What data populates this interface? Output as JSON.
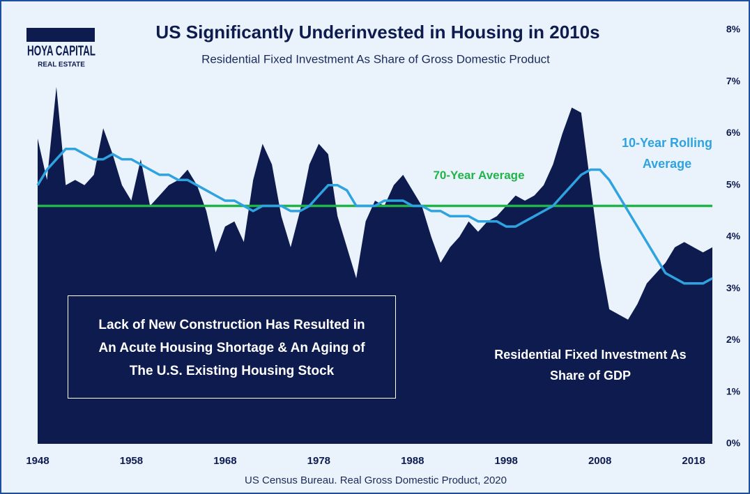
{
  "chart_data": {
    "type": "area",
    "title": "US Significantly Underinvested in Housing in 2010s",
    "subtitle": "Residential Fixed Investment As Share of Gross Domestic Product",
    "logo": {
      "name": "HOYA CAPITAL",
      "tagline": "REAL ESTATE"
    },
    "source": "US Census Bureau. Real Gross Domestic Product, 2020",
    "annotation": "Lack of New Construction Has Resulted in An Acute Housing Shortage & An Aging of The U.S. Existing Housing Stock",
    "x": [
      1948,
      1949,
      1950,
      1951,
      1952,
      1953,
      1954,
      1955,
      1956,
      1957,
      1958,
      1959,
      1960,
      1961,
      1962,
      1963,
      1964,
      1965,
      1966,
      1967,
      1968,
      1969,
      1970,
      1971,
      1972,
      1973,
      1974,
      1975,
      1976,
      1977,
      1978,
      1979,
      1980,
      1981,
      1982,
      1983,
      1984,
      1985,
      1986,
      1987,
      1988,
      1989,
      1990,
      1991,
      1992,
      1993,
      1994,
      1995,
      1996,
      1997,
      1998,
      1999,
      2000,
      2001,
      2002,
      2003,
      2004,
      2005,
      2006,
      2007,
      2008,
      2009,
      2010,
      2011,
      2012,
      2013,
      2014,
      2015,
      2016,
      2017,
      2018,
      2019,
      2020
    ],
    "series": [
      {
        "name": "Residential Fixed Investment As Share of GDP",
        "color": "#0d1b4f",
        "values": [
          5.9,
          5.1,
          6.9,
          5.0,
          5.1,
          5.0,
          5.2,
          6.1,
          5.6,
          5.0,
          4.7,
          5.5,
          4.6,
          4.8,
          5.0,
          5.1,
          5.3,
          5.0,
          4.5,
          3.7,
          4.2,
          4.3,
          3.9,
          5.1,
          5.8,
          5.4,
          4.4,
          3.8,
          4.5,
          5.4,
          5.8,
          5.6,
          4.4,
          3.8,
          3.2,
          4.3,
          4.7,
          4.6,
          5.0,
          5.2,
          4.9,
          4.6,
          4.0,
          3.5,
          3.8,
          4.0,
          4.3,
          4.1,
          4.3,
          4.4,
          4.6,
          4.8,
          4.7,
          4.8,
          5.0,
          5.4,
          6.0,
          6.5,
          6.4,
          5.0,
          3.6,
          2.6,
          2.5,
          2.4,
          2.7,
          3.1,
          3.3,
          3.5,
          3.8,
          3.9,
          3.8,
          3.7,
          3.8
        ]
      },
      {
        "name": "10-Year Rolling Average",
        "color": "#2ea3e0",
        "render": "line",
        "values": [
          5.0,
          5.3,
          5.5,
          5.7,
          5.7,
          5.6,
          5.5,
          5.5,
          5.6,
          5.5,
          5.5,
          5.4,
          5.3,
          5.2,
          5.2,
          5.1,
          5.1,
          5.0,
          4.9,
          4.8,
          4.7,
          4.7,
          4.6,
          4.5,
          4.6,
          4.6,
          4.6,
          4.5,
          4.5,
          4.6,
          4.8,
          5.0,
          5.0,
          4.9,
          4.6,
          4.6,
          4.6,
          4.7,
          4.7,
          4.7,
          4.6,
          4.6,
          4.5,
          4.5,
          4.4,
          4.4,
          4.4,
          4.3,
          4.3,
          4.3,
          4.2,
          4.2,
          4.3,
          4.4,
          4.5,
          4.6,
          4.8,
          5.0,
          5.2,
          5.3,
          5.3,
          5.1,
          4.8,
          4.5,
          4.2,
          3.9,
          3.6,
          3.3,
          3.2,
          3.1,
          3.1,
          3.1,
          3.2
        ]
      }
    ],
    "reference_line": {
      "label": "70-Year Average",
      "value": 4.6,
      "color": "#22b34a"
    },
    "xlim": [
      1948,
      2020
    ],
    "xticks": [
      1948,
      1958,
      1968,
      1978,
      1988,
      1998,
      2008,
      2018
    ],
    "ylim": [
      0,
      8
    ],
    "yticks": [
      {
        "value": 0,
        "label": "0%"
      },
      {
        "value": 1,
        "label": "1%"
      },
      {
        "value": 2,
        "label": "2%"
      },
      {
        "value": 3,
        "label": "3%"
      },
      {
        "value": 4,
        "label": "4%"
      },
      {
        "value": 5,
        "label": "5%"
      },
      {
        "value": 6,
        "label": "6%"
      },
      {
        "value": 7,
        "label": "7%"
      },
      {
        "value": 8,
        "label": "8%"
      }
    ]
  }
}
